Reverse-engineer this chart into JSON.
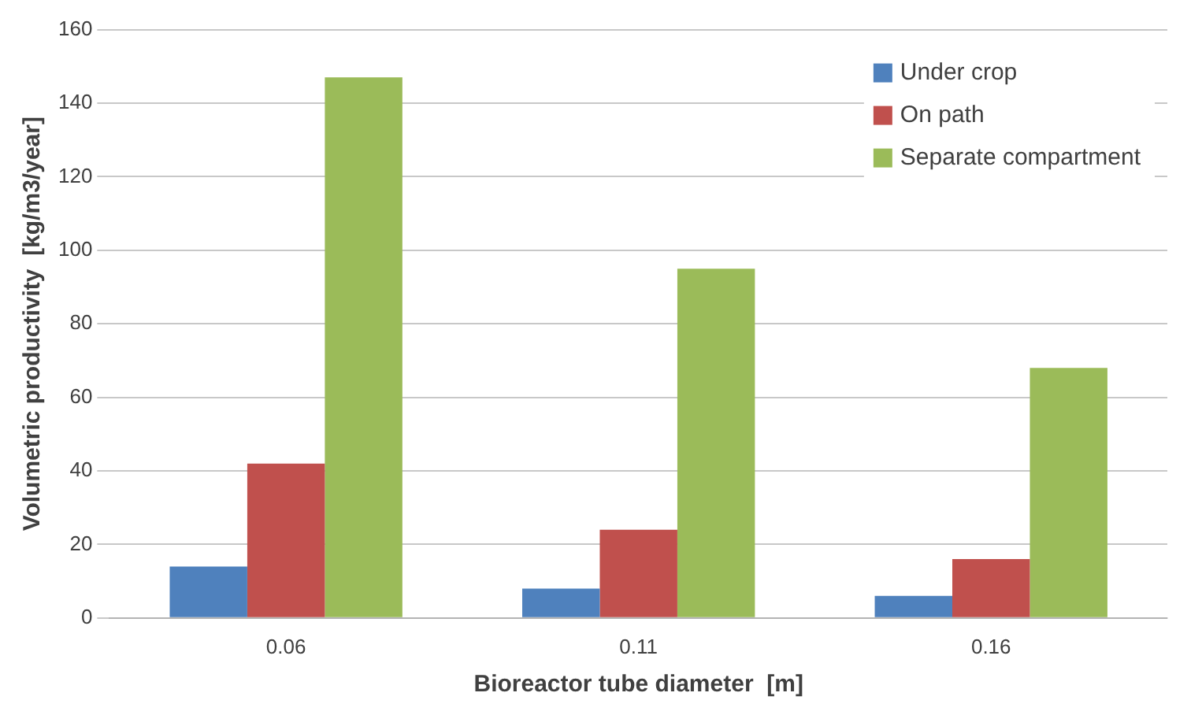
{
  "chart_data": {
    "type": "bar",
    "xlabel": "Bioreactor tube diameter  [m]",
    "ylabel": "Volumetric productivity  [kg/m3/year]",
    "categories": [
      "0.06",
      "0.11",
      "0.16"
    ],
    "series": [
      {
        "name": "Under crop",
        "color": "#4f81bd",
        "values": [
          14,
          8,
          6
        ]
      },
      {
        "name": "On path",
        "color": "#c0504d",
        "values": [
          42,
          24,
          16
        ]
      },
      {
        "name": "Separate compartment",
        "color": "#9bbb59",
        "values": [
          147,
          95,
          68
        ]
      }
    ],
    "ylim": [
      0,
      160
    ],
    "yticks": [
      0,
      20,
      40,
      60,
      80,
      100,
      120,
      140,
      160
    ],
    "grid": "y",
    "legend": "top right"
  }
}
